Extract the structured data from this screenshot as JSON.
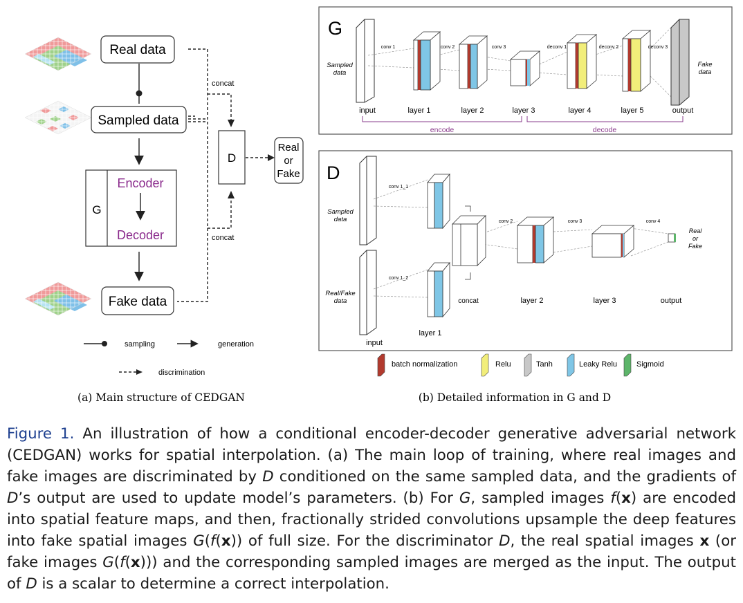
{
  "panel_a": {
    "real_data": "Real data",
    "sampled_data": "Sampled data",
    "fake_data": "Fake data",
    "g_label": "G",
    "encoder": "Encoder",
    "decoder": "Decoder",
    "d_label": "D",
    "output_line1": "Real",
    "output_line2": "or",
    "output_line3": "Fake",
    "concat_top": "concat",
    "concat_bottom": "concat",
    "legend_sampling": "sampling",
    "legend_generation": "generation",
    "legend_discrimination": "discrimination",
    "caption": "(a) Main structure of CEDGAN"
  },
  "panel_b": {
    "g_title": "G",
    "g_input_text1": "Sampled",
    "g_input_text2": "data",
    "g_output_text1": "Fake",
    "g_output_text2": "data",
    "g_ops": [
      "conv 1",
      "conv 2",
      "conv 3",
      "deconv 1",
      "deconv 2",
      "deconv 3"
    ],
    "g_layers": [
      "input",
      "layer 1",
      "layer 2",
      "layer 3",
      "layer 4",
      "layer 5",
      "output"
    ],
    "encode": "encode",
    "decode": "decode",
    "d_title": "D",
    "d_in1_text1": "Sampled",
    "d_in1_text2": "data",
    "d_in2_text1": "Real/Fake",
    "d_in2_text2": "data",
    "d_ops": [
      "conv 1_1",
      "conv 1_2",
      "conv 2",
      "conv 3",
      "conv 4"
    ],
    "d_out1": "Real",
    "d_out2": "or",
    "d_out3": "Fake",
    "d_concat": "concat",
    "d_layer1": "layer 1",
    "d_layer2": "layer 2",
    "d_layer3": "layer 3",
    "d_output": "output",
    "d_input": "input",
    "legend": [
      {
        "label": "batch normalization",
        "color": "#b23a2e"
      },
      {
        "label": "Relu",
        "color": "#f2ee7a"
      },
      {
        "label": "Tanh",
        "color": "#c8c8c8"
      },
      {
        "label": "Leaky Relu",
        "color": "#7fc6e6"
      },
      {
        "label": "Sigmoid",
        "color": "#5db56a"
      }
    ],
    "caption": "(b) Detailed information in G and D"
  },
  "caption": {
    "label": "Figure 1.",
    "s1": " An illustration of how a conditional encoder-decoder generative adversarial network (CEDGAN) works for spatial interpolation. (a) The main loop of training, where real images and fake images are discriminated by ",
    "d1": "D",
    "s2": " conditioned on the same sampled data, and the gradients of ",
    "d2": "D",
    "s3": "’s output are used to update model’s parameters. (b) For ",
    "g1": "G",
    "s4": ", sampled images ",
    "f1": "f",
    "x1": "x",
    "s5": " are encoded into spatial feature maps, and then, fractionally strided convolutions upsample the deep features into fake spatial images ",
    "g2": "G",
    "f2": "f",
    "x2": "x",
    "s6": " of full size. For the discriminator ",
    "d3": "D",
    "s7": ", the real spatial images ",
    "x3": "x",
    "s8": " (or fake images ",
    "g3": "G",
    "f3": "f",
    "x4": "x",
    "s9": ") and the corresponding sampled images are merged as the input. The output of ",
    "d4": "D",
    "s10": " is a scalar to determine a correct interpolation."
  }
}
